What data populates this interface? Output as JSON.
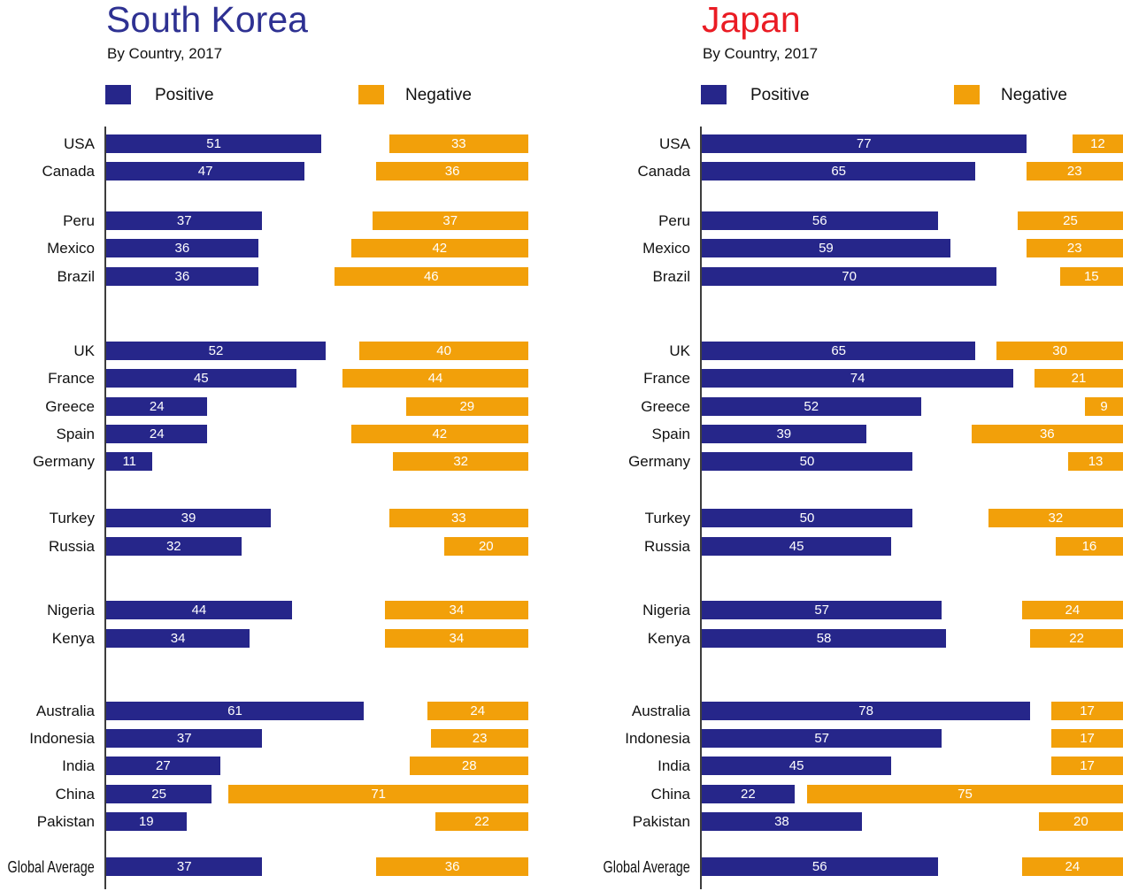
{
  "colors": {
    "positive": "#26268A",
    "negative": "#F2A00A",
    "title_south_korea": "#2E3192",
    "title_japan": "#EA1C24"
  },
  "chart_data": [
    {
      "type": "bar",
      "orientation": "horizontal",
      "title": "South Korea",
      "subtitle": "By Country, 2017",
      "legend": [
        "Positive",
        "Negative"
      ],
      "legend_position": "top",
      "xlim": [
        0,
        100
      ],
      "negative_bars_right_aligned": true,
      "categories": [
        "USA",
        "Canada",
        "Peru",
        "Mexico",
        "Brazil",
        "UK",
        "France",
        "Greece",
        "Spain",
        "Germany",
        "Turkey",
        "Russia",
        "Nigeria",
        "Kenya",
        "Australia",
        "Indonesia",
        "India",
        "China",
        "Pakistan",
        "Global Average"
      ],
      "groups": [
        2,
        3,
        5,
        2,
        2,
        5,
        1
      ],
      "series": [
        {
          "name": "Positive",
          "values": [
            51,
            47,
            37,
            36,
            36,
            52,
            45,
            24,
            24,
            11,
            39,
            32,
            44,
            34,
            61,
            37,
            27,
            25,
            19,
            37
          ]
        },
        {
          "name": "Negative",
          "values": [
            33,
            36,
            37,
            42,
            46,
            40,
            44,
            29,
            42,
            32,
            33,
            20,
            34,
            34,
            24,
            23,
            28,
            71,
            22,
            36
          ]
        }
      ]
    },
    {
      "type": "bar",
      "orientation": "horizontal",
      "title": "Japan",
      "subtitle": "By Country, 2017",
      "legend": [
        "Positive",
        "Negative"
      ],
      "legend_position": "top",
      "xlim": [
        0,
        100
      ],
      "negative_bars_right_aligned": true,
      "categories": [
        "USA",
        "Canada",
        "Peru",
        "Mexico",
        "Brazil",
        "UK",
        "France",
        "Greece",
        "Spain",
        "Germany",
        "Turkey",
        "Russia",
        "Nigeria",
        "Kenya",
        "Australia",
        "Indonesia",
        "India",
        "China",
        "Pakistan",
        "Global Average"
      ],
      "groups": [
        2,
        3,
        5,
        2,
        2,
        5,
        1
      ],
      "series": [
        {
          "name": "Positive",
          "values": [
            77,
            65,
            56,
            59,
            70,
            65,
            74,
            52,
            39,
            50,
            50,
            45,
            57,
            58,
            78,
            57,
            45,
            22,
            38,
            56
          ]
        },
        {
          "name": "Negative",
          "values": [
            12,
            23,
            25,
            23,
            15,
            30,
            21,
            9,
            36,
            13,
            32,
            16,
            24,
            22,
            17,
            17,
            17,
            75,
            20,
            24
          ]
        }
      ]
    }
  ]
}
